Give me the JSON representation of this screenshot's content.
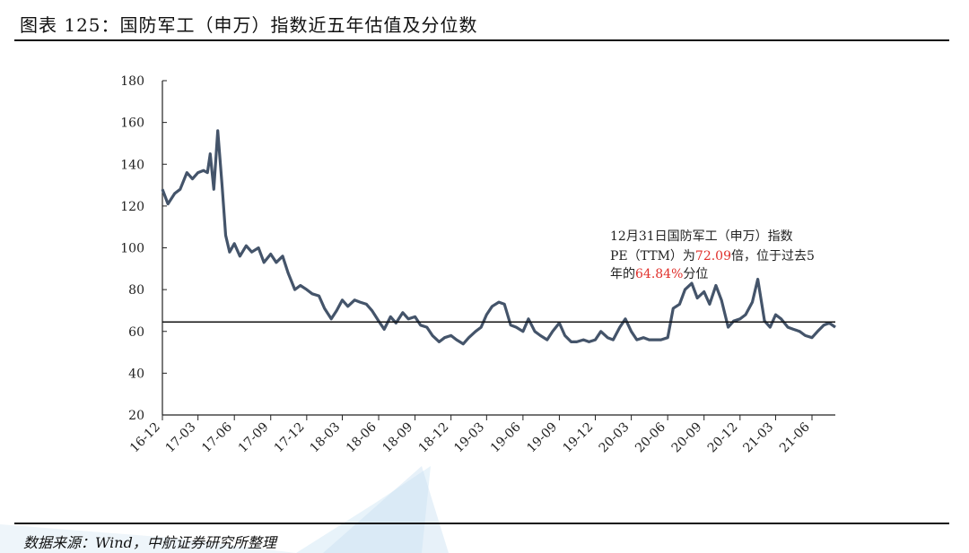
{
  "figure": {
    "title": "图表 125：国防军工（申万）指数近五年估值及分位数",
    "source": "数据来源：Wind，中航证券研究所整理"
  },
  "colors": {
    "series": "#44546a",
    "highlight": "#e0302b",
    "reference": "#111111"
  },
  "chart_data": {
    "type": "line",
    "title": "",
    "xlabel": "",
    "ylabel": "",
    "ylim": [
      20,
      180
    ],
    "yticks": [
      20,
      40,
      60,
      80,
      100,
      120,
      140,
      160,
      180
    ],
    "x_ticks": [
      "16-12",
      "17-03",
      "17-06",
      "17-09",
      "17-12",
      "18-03",
      "18-06",
      "18-09",
      "18-12",
      "19-03",
      "19-06",
      "19-09",
      "19-12",
      "20-03",
      "20-06",
      "20-09",
      "20-12",
      "21-03",
      "21-06"
    ],
    "grid": false,
    "legend": "none",
    "reference_line": {
      "value": 64.5
    },
    "series": [
      {
        "x": [
          "2016-12-01",
          "2016-12-15",
          "2017-01-01",
          "2017-01-15",
          "2017-02-01",
          "2017-02-15",
          "2017-03-01",
          "2017-03-15",
          "2017-03-25",
          "2017-04-01",
          "2017-04-10",
          "2017-04-20",
          "2017-05-01",
          "2017-05-10",
          "2017-05-20",
          "2017-06-01",
          "2017-06-15",
          "2017-07-01",
          "2017-07-15",
          "2017-08-01",
          "2017-08-15",
          "2017-09-01",
          "2017-09-15",
          "2017-10-01",
          "2017-10-15",
          "2017-11-01",
          "2017-11-15",
          "2017-12-01",
          "2017-12-15",
          "2018-01-01",
          "2018-01-15",
          "2018-02-01",
          "2018-02-15",
          "2018-03-01",
          "2018-03-15",
          "2018-04-01",
          "2018-04-15",
          "2018-05-01",
          "2018-05-15",
          "2018-06-01",
          "2018-06-15",
          "2018-07-01",
          "2018-07-15",
          "2018-08-01",
          "2018-08-15",
          "2018-09-01",
          "2018-09-15",
          "2018-10-01",
          "2018-10-15",
          "2018-11-01",
          "2018-11-15",
          "2018-12-01",
          "2018-12-15",
          "2019-01-01",
          "2019-01-15",
          "2019-02-01",
          "2019-02-15",
          "2019-03-01",
          "2019-03-15",
          "2019-04-01",
          "2019-04-15",
          "2019-05-01",
          "2019-05-15",
          "2019-06-01",
          "2019-06-15",
          "2019-07-01",
          "2019-07-15",
          "2019-08-01",
          "2019-08-15",
          "2019-09-01",
          "2019-09-15",
          "2019-10-01",
          "2019-10-15",
          "2019-11-01",
          "2019-11-15",
          "2019-12-01",
          "2019-12-15",
          "2020-01-01",
          "2020-01-15",
          "2020-02-01",
          "2020-02-15",
          "2020-03-01",
          "2020-03-15",
          "2020-04-01",
          "2020-04-15",
          "2020-05-01",
          "2020-05-15",
          "2020-06-01",
          "2020-06-15",
          "2020-07-01",
          "2020-07-15",
          "2020-08-01",
          "2020-08-15",
          "2020-09-01",
          "2020-09-15",
          "2020-10-01",
          "2020-10-15",
          "2020-11-01",
          "2020-11-15",
          "2020-12-01",
          "2020-12-15",
          "2021-01-01",
          "2021-01-15",
          "2021-02-01",
          "2021-02-15",
          "2021-03-01",
          "2021-03-15",
          "2021-04-01",
          "2021-04-15",
          "2021-05-01",
          "2021-05-15",
          "2021-06-01",
          "2021-06-15",
          "2021-07-01",
          "2021-07-15",
          "2021-07-30"
        ],
        "y": [
          128,
          121,
          126,
          128,
          136,
          133,
          136,
          137,
          136,
          145,
          128,
          156,
          130,
          106,
          98,
          102,
          96,
          101,
          98,
          100,
          93,
          97,
          93,
          96,
          88,
          80,
          82,
          80,
          78,
          77,
          71,
          66,
          70,
          75,
          72,
          75,
          74,
          73,
          70,
          65,
          61,
          67,
          64,
          69,
          66,
          67,
          63,
          62,
          58,
          55,
          57,
          58,
          56,
          54,
          57,
          60,
          62,
          68,
          72,
          74,
          73,
          63,
          62,
          60,
          66,
          60,
          58,
          56,
          60,
          64,
          58,
          55,
          55,
          56,
          55,
          56,
          60,
          57,
          56,
          62,
          66,
          60,
          56,
          57,
          56,
          56,
          56,
          57,
          71,
          73,
          80,
          83,
          76,
          79,
          73,
          82,
          75,
          62,
          65,
          66,
          68,
          74,
          85,
          65,
          62,
          68,
          66,
          62,
          61,
          60,
          58,
          57,
          60,
          63,
          64,
          62
        ]
      }
    ],
    "annotation": {
      "line1": "12月31日国防军工（申万）指数",
      "line2_prefix": "PE（TTM）为",
      "pe_value": "72.09",
      "line2_mid": "倍，位于过去5",
      "line3_prefix": "年的",
      "percentile": "64.84%",
      "line3_suffix": "分位"
    }
  }
}
